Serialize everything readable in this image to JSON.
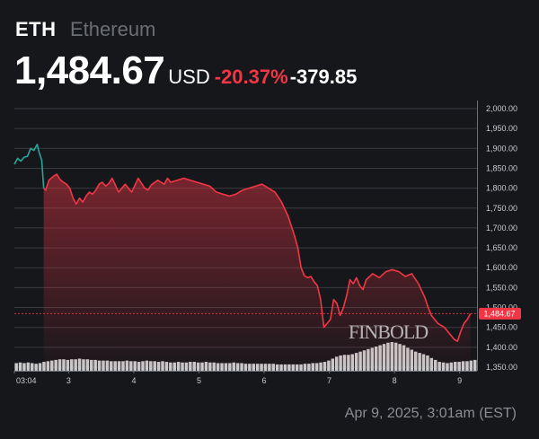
{
  "header": {
    "symbol": "ETH",
    "name": "Ethereum",
    "price": "1,484.67",
    "currency": "USD",
    "change_pct": "-20.37%",
    "change_abs": "-379.85"
  },
  "timestamp": "Apr 9, 2025, 3:01am (EST)",
  "watermark": "FINBOLD",
  "colors": {
    "background": "#16171b",
    "down": "#f23645",
    "up": "#26a69a",
    "grid": "#3a3b40",
    "volume": "#d9d9d9"
  },
  "chart_data": {
    "type": "area",
    "title": "",
    "xlabel": "",
    "ylabel": "",
    "ylim": [
      1350,
      2000
    ],
    "y_ticks": [
      "2,000.00",
      "1,950.00",
      "1,900.00",
      "1,850.00",
      "1,800.00",
      "1,750.00",
      "1,700.00",
      "1,650.00",
      "1,600.00",
      "1,550.00",
      "1,500.00",
      "1,450.00",
      "1,400.00",
      "1,350.00"
    ],
    "x_ticks": [
      {
        "label": "03:04",
        "day": 2.0
      },
      {
        "label": "3",
        "day": 2.833
      },
      {
        "label": "4",
        "day": 3.833
      },
      {
        "label": "5",
        "day": 4.833
      },
      {
        "label": "6",
        "day": 5.833
      },
      {
        "label": "7",
        "day": 6.833
      },
      {
        "label": "8",
        "day": 7.833
      },
      {
        "label": "9",
        "day": 8.833
      }
    ],
    "current_price_label": "1,484.67",
    "current_price": 1484.67,
    "price_day": [
      2.0,
      2.05,
      2.1,
      2.15,
      2.2,
      2.25,
      2.3,
      2.35,
      2.38,
      2.42,
      2.45,
      2.48,
      2.53,
      2.6,
      2.65,
      2.7,
      2.75,
      2.8,
      2.85,
      2.9,
      2.95,
      3.0,
      3.05,
      3.1,
      3.15,
      3.2,
      3.25,
      3.3,
      3.35,
      3.4,
      3.45,
      3.5,
      3.6,
      3.7,
      3.8,
      3.9,
      4.0,
      4.05,
      4.1,
      4.2,
      4.3,
      4.35,
      4.4,
      4.5,
      4.6,
      4.7,
      4.8,
      4.9,
      5.0,
      5.1,
      5.2,
      5.3,
      5.4,
      5.5,
      5.6,
      5.7,
      5.8,
      5.9,
      6.0,
      6.1,
      6.2,
      6.3,
      6.35,
      6.4,
      6.45,
      6.5,
      6.55,
      6.6,
      6.65,
      6.7,
      6.75,
      6.8,
      6.85,
      6.9,
      6.95,
      7.0,
      7.05,
      7.1,
      7.15,
      7.2,
      7.25,
      7.3,
      7.35,
      7.4,
      7.5,
      7.6,
      7.7,
      7.8,
      7.9,
      8.0,
      8.1,
      8.2,
      8.3,
      8.35,
      8.4,
      8.45,
      8.5,
      8.55,
      8.6,
      8.65,
      8.7,
      8.75,
      8.8,
      8.85,
      8.9,
      8.95,
      9.0
    ],
    "price_values": [
      1860,
      1875,
      1868,
      1878,
      1880,
      1900,
      1895,
      1910,
      1890,
      1870,
      1800,
      1795,
      1820,
      1830,
      1835,
      1822,
      1815,
      1810,
      1800,
      1775,
      1760,
      1775,
      1765,
      1780,
      1790,
      1785,
      1795,
      1810,
      1815,
      1805,
      1812,
      1825,
      1790,
      1810,
      1790,
      1825,
      1800,
      1795,
      1808,
      1820,
      1810,
      1825,
      1815,
      1820,
      1825,
      1820,
      1815,
      1810,
      1805,
      1790,
      1785,
      1780,
      1785,
      1795,
      1800,
      1805,
      1810,
      1800,
      1790,
      1765,
      1730,
      1680,
      1650,
      1600,
      1580,
      1575,
      1578,
      1565,
      1555,
      1520,
      1450,
      1460,
      1470,
      1520,
      1510,
      1480,
      1500,
      1530,
      1570,
      1560,
      1575,
      1555,
      1545,
      1570,
      1585,
      1575,
      1590,
      1595,
      1590,
      1578,
      1585,
      1560,
      1525,
      1500,
      1480,
      1470,
      1460,
      1455,
      1450,
      1440,
      1430,
      1420,
      1415,
      1440,
      1460,
      1470,
      1484.67
    ],
    "up_until_day": 2.45,
    "volume_values": [
      12,
      13,
      12,
      13,
      12,
      11,
      12,
      14,
      15,
      16,
      17,
      18,
      18,
      17,
      18,
      18,
      19,
      18,
      18,
      17,
      17,
      16,
      16,
      16,
      15,
      15,
      15,
      15,
      16,
      15,
      15,
      14,
      15,
      16,
      15,
      15,
      14,
      15,
      14,
      13,
      13,
      14,
      13,
      13,
      14,
      14,
      13,
      13,
      14,
      13,
      13,
      12,
      12,
      12,
      12,
      13,
      12,
      12,
      11,
      11,
      11,
      11,
      11,
      11,
      11,
      11,
      10,
      10,
      10,
      10,
      10,
      10,
      10,
      11,
      11,
      12,
      12,
      13,
      14,
      16,
      19,
      22,
      24,
      25,
      25,
      26,
      28,
      30,
      32,
      34,
      36,
      38,
      40,
      42,
      44,
      45,
      44,
      42,
      40,
      36,
      33,
      30,
      28,
      26,
      24,
      20,
      17,
      14,
      13,
      12,
      13,
      14,
      14,
      15,
      15,
      16,
      17
    ]
  }
}
